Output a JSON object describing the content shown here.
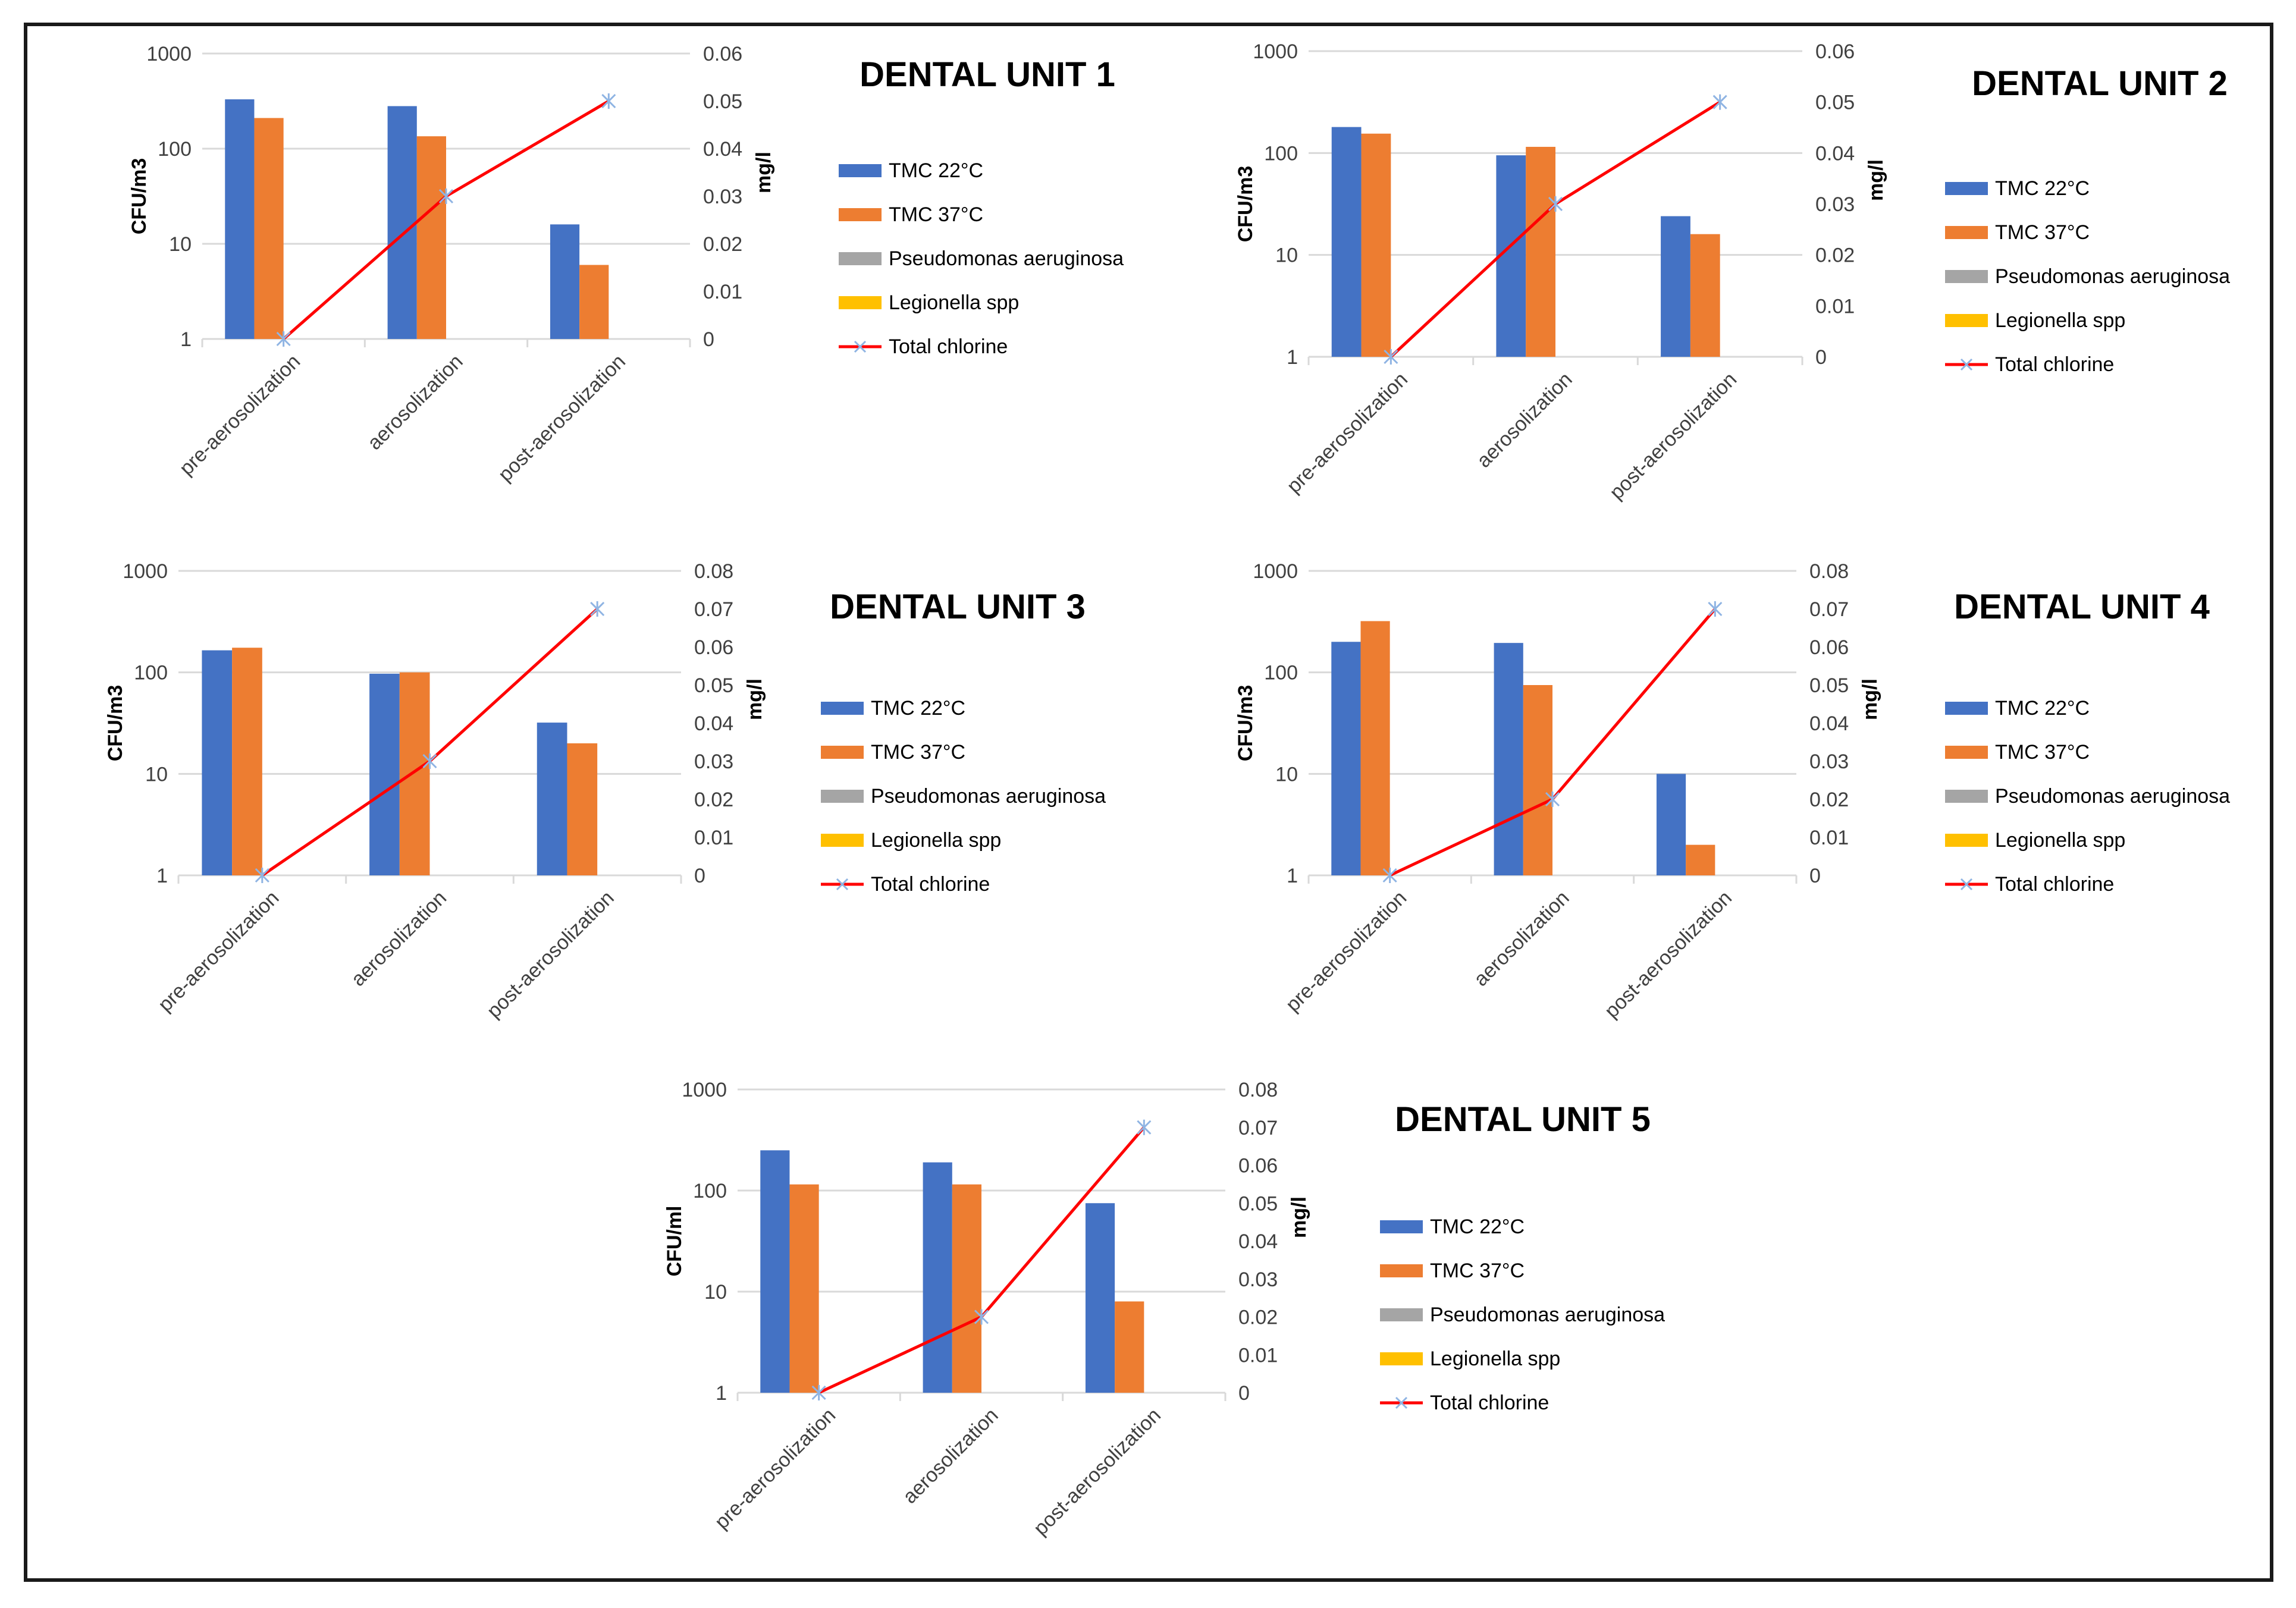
{
  "legend": [
    {
      "label": "TMC 22°C",
      "color": "#4472C4",
      "kind": "bar"
    },
    {
      "label": "TMC 37°C",
      "color": "#ED7D31",
      "kind": "bar"
    },
    {
      "label": "Pseudomonas aeruginosa",
      "color": "#A5A5A5",
      "kind": "bar"
    },
    {
      "label": "Legionella spp",
      "color": "#FFC000",
      "kind": "bar"
    },
    {
      "label": "Total chlorine",
      "color": "#FF0000",
      "kind": "line"
    }
  ],
  "chart_data": [
    {
      "type": "bar+line",
      "title": "DENTAL UNIT 1",
      "categories": [
        "pre-aerosolization",
        "aerosolization",
        "post-aerosolization"
      ],
      "ylabel": "CFU/m3",
      "ylabel2": "mg/l",
      "yscale": "log",
      "ylim": [
        1,
        1000
      ],
      "yticks": [
        "1",
        "10",
        "100",
        "1000"
      ],
      "ylim2": [
        0,
        0.06
      ],
      "yticks2": [
        "0",
        "0.01",
        "0.02",
        "0.03",
        "0.04",
        "0.05",
        "0.06"
      ],
      "series": [
        {
          "name": "TMC 22°C",
          "values": [
            330,
            280,
            16
          ]
        },
        {
          "name": "TMC 37°C",
          "values": [
            210,
            135,
            6
          ]
        },
        {
          "name": "Pseudomonas aeruginosa",
          "values": [
            0,
            0,
            0
          ]
        },
        {
          "name": "Legionella spp",
          "values": [
            0,
            0,
            0
          ]
        },
        {
          "name": "Total chlorine",
          "axis": "secondary",
          "values": [
            0,
            0.03,
            0.05
          ]
        }
      ]
    },
    {
      "type": "bar+line",
      "title": "DENTAL UNIT 2",
      "categories": [
        "pre-aerosolization",
        "aerosolization",
        "post-aerosolization"
      ],
      "ylabel": "CFU/m3",
      "ylabel2": "mg/l",
      "yscale": "log",
      "ylim": [
        1,
        1000
      ],
      "yticks": [
        "1",
        "10",
        "100",
        "1000"
      ],
      "ylim2": [
        0,
        0.06
      ],
      "yticks2": [
        "0",
        "0.01",
        "0.02",
        "0.03",
        "0.04",
        "0.05",
        "0.06"
      ],
      "series": [
        {
          "name": "TMC 22°C",
          "values": [
            180,
            95,
            24
          ]
        },
        {
          "name": "TMC 37°C",
          "values": [
            155,
            115,
            16
          ]
        },
        {
          "name": "Pseudomonas aeruginosa",
          "values": [
            0,
            0,
            0
          ]
        },
        {
          "name": "Legionella spp",
          "values": [
            0,
            0,
            0
          ]
        },
        {
          "name": "Total chlorine",
          "axis": "secondary",
          "values": [
            0,
            0.03,
            0.05
          ]
        }
      ]
    },
    {
      "type": "bar+line",
      "title": "DENTAL UNIT 3",
      "categories": [
        "pre-aerosolization",
        "aerosolization",
        "post-aerosolization"
      ],
      "ylabel": "CFU/m3",
      "ylabel2": "mg/l",
      "yscale": "log",
      "ylim": [
        1,
        1000
      ],
      "yticks": [
        "1",
        "10",
        "100",
        "1000"
      ],
      "ylim2": [
        0,
        0.08
      ],
      "yticks2": [
        "0",
        "0.01",
        "0.02",
        "0.03",
        "0.04",
        "0.05",
        "0.06",
        "0.07",
        "0.08"
      ],
      "series": [
        {
          "name": "TMC 22°C",
          "values": [
            165,
            97,
            32
          ]
        },
        {
          "name": "TMC 37°C",
          "values": [
            175,
            100,
            20
          ]
        },
        {
          "name": "Pseudomonas aeruginosa",
          "values": [
            0,
            0,
            0
          ]
        },
        {
          "name": "Legionella spp",
          "values": [
            0,
            0,
            0
          ]
        },
        {
          "name": "Total chlorine",
          "axis": "secondary",
          "values": [
            0,
            0.03,
            0.07
          ]
        }
      ]
    },
    {
      "type": "bar+line",
      "title": "DENTAL UNIT 4",
      "categories": [
        "pre-aerosolization",
        "aerosolization",
        "post-aerosolization"
      ],
      "ylabel": "CFU/m3",
      "ylabel2": "mg/l",
      "yscale": "log",
      "ylim": [
        1,
        1000
      ],
      "yticks": [
        "1",
        "10",
        "100",
        "1000"
      ],
      "ylim2": [
        0,
        0.08
      ],
      "yticks2": [
        "0",
        "0.01",
        "0.02",
        "0.03",
        "0.04",
        "0.05",
        "0.06",
        "0.07",
        "0.08"
      ],
      "series": [
        {
          "name": "TMC 22°C",
          "values": [
            200,
            195,
            10
          ]
        },
        {
          "name": "TMC 37°C",
          "values": [
            320,
            75,
            2
          ]
        },
        {
          "name": "Pseudomonas aeruginosa",
          "values": [
            0,
            0,
            0
          ]
        },
        {
          "name": "Legionella spp",
          "values": [
            0,
            0,
            0
          ]
        },
        {
          "name": "Total chlorine",
          "axis": "secondary",
          "values": [
            0,
            0.02,
            0.07
          ]
        }
      ]
    },
    {
      "type": "bar+line",
      "title": "DENTAL UNIT 5",
      "categories": [
        "pre-aerosolization",
        "aerosolization",
        "post-aerosolization"
      ],
      "ylabel": "CFU/ml",
      "ylabel2": "mg/l",
      "yscale": "log",
      "ylim": [
        1,
        1000
      ],
      "yticks": [
        "1",
        "10",
        "100",
        "1000"
      ],
      "ylim2": [
        0,
        0.08
      ],
      "yticks2": [
        "0",
        "0.01",
        "0.02",
        "0.03",
        "0.04",
        "0.05",
        "0.06",
        "0.07",
        "0.08"
      ],
      "series": [
        {
          "name": "TMC 22°C",
          "values": [
            250,
            190,
            75
          ]
        },
        {
          "name": "TMC 37°C",
          "values": [
            115,
            115,
            8
          ]
        },
        {
          "name": "Pseudomonas aeruginosa",
          "values": [
            0,
            0,
            0
          ]
        },
        {
          "name": "Legionella spp",
          "values": [
            0,
            0,
            0
          ]
        },
        {
          "name": "Total chlorine",
          "axis": "secondary",
          "values": [
            0,
            0.02,
            0.07
          ]
        }
      ]
    }
  ]
}
